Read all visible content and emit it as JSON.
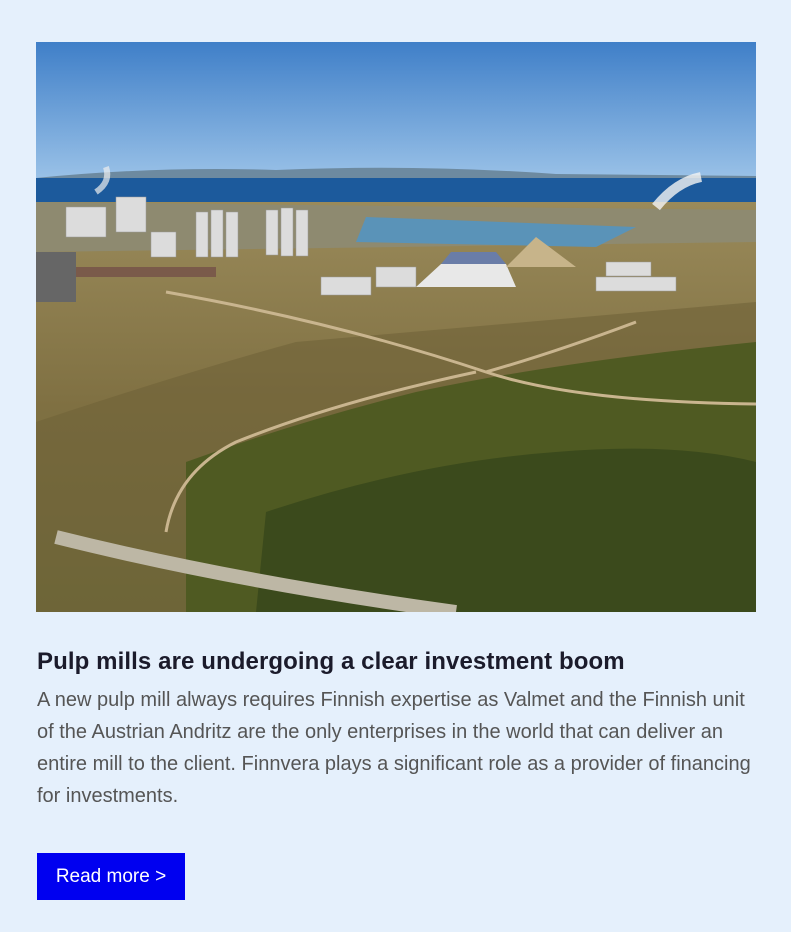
{
  "card": {
    "title": "Pulp mills are undergoing a clear investment boom",
    "body": "A new pulp mill always requires Finnish expertise as Valmet and the Finnish unit of the Austrian Andritz are the only enterprises in the world that can deliver an entire mill to the client. Finnvera plays a significant role as a provider of financing for investments.",
    "button": "Read more >"
  }
}
